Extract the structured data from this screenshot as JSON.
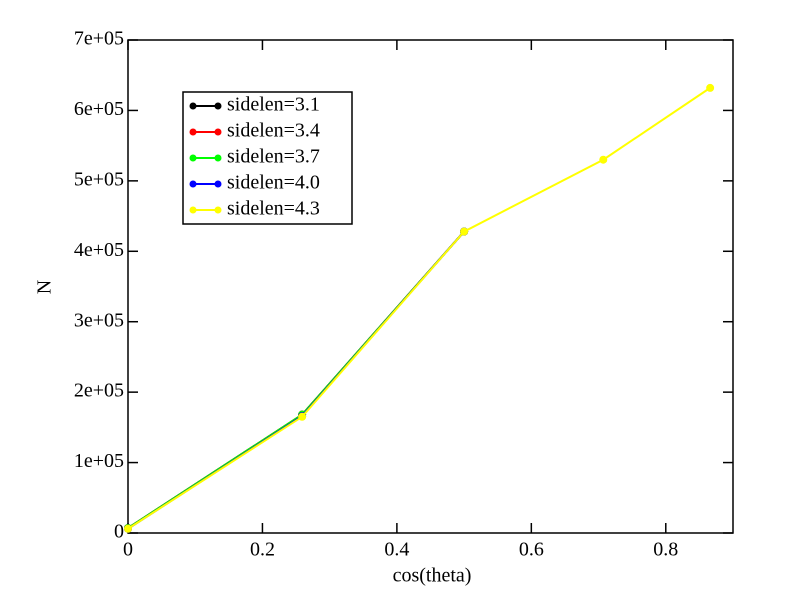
{
  "chart_data": {
    "type": "line",
    "x_label": "cos(theta)",
    "y_label": "N",
    "xlim": [
      0,
      0.9
    ],
    "ylim": [
      0,
      700000
    ],
    "xticks": [
      0,
      0.2,
      0.4,
      0.6,
      0.8
    ],
    "yticks": [
      0,
      {
        "value": 100000,
        "label": "1e+05"
      },
      {
        "value": 200000,
        "label": "2e+05"
      },
      {
        "value": 300000,
        "label": "3e+05"
      },
      {
        "value": 400000,
        "label": "4e+05"
      },
      {
        "value": 500000,
        "label": "5e+05"
      },
      {
        "value": 600000,
        "label": "6e+05"
      },
      {
        "value": 700000,
        "label": "7e+05"
      }
    ],
    "legend": "upper left",
    "series": [
      {
        "name": "sidelen=3.1",
        "color": "#000000",
        "x": [
          0,
          0.259,
          0.5
        ],
        "values": [
          7000,
          168000,
          428000
        ]
      },
      {
        "name": "sidelen=3.4",
        "color": "#ff0000",
        "x": [
          0,
          0.259,
          0.5
        ],
        "values": [
          7000,
          168000,
          428000
        ]
      },
      {
        "name": "sidelen=3.7",
        "color": "#00ff00",
        "x": [
          0,
          0.259,
          0.5
        ],
        "values": [
          7000,
          168000,
          428000
        ]
      },
      {
        "name": "sidelen=4.0",
        "color": "#0000ff",
        "x": [
          0,
          0.259,
          0.5
        ],
        "values": [
          6000,
          166000,
          428000
        ]
      },
      {
        "name": "sidelen=4.3",
        "color": "#ffff00",
        "x": [
          0,
          0.259,
          0.5,
          0.707,
          0.866
        ],
        "values": [
          6000,
          165000,
          428000,
          530000,
          632000
        ]
      }
    ]
  }
}
